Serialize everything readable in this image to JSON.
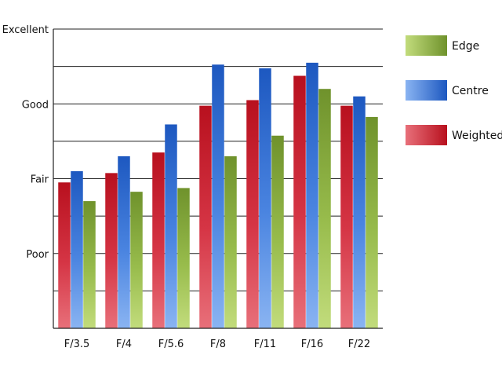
{
  "chart_data": {
    "type": "bar",
    "categories": [
      "F/3.5",
      "F/4",
      "F/5.6",
      "F/8",
      "F/11",
      "F/16",
      "F/22"
    ],
    "y_ticks": [
      "Excellent",
      "Good",
      "Fair",
      "Poor"
    ],
    "ylim": [
      0,
      8
    ],
    "y_tick_values": [
      8,
      6,
      4,
      2
    ],
    "grid": true,
    "legend_position": "right",
    "series": [
      {
        "name": "Weighted",
        "values": [
          3.9,
          4.15,
          4.7,
          5.95,
          6.1,
          6.75,
          5.95
        ],
        "color": "#c8182a"
      },
      {
        "name": "Centre",
        "values": [
          4.2,
          4.6,
          5.45,
          7.05,
          6.95,
          7.1,
          6.2
        ],
        "color": "#2a66c8"
      },
      {
        "name": "Edge",
        "values": [
          3.4,
          3.65,
          3.75,
          4.6,
          5.15,
          6.4,
          5.65
        ],
        "color": "#7ea336"
      }
    ],
    "legend_order": [
      "Edge",
      "Centre",
      "Weighted"
    ]
  }
}
